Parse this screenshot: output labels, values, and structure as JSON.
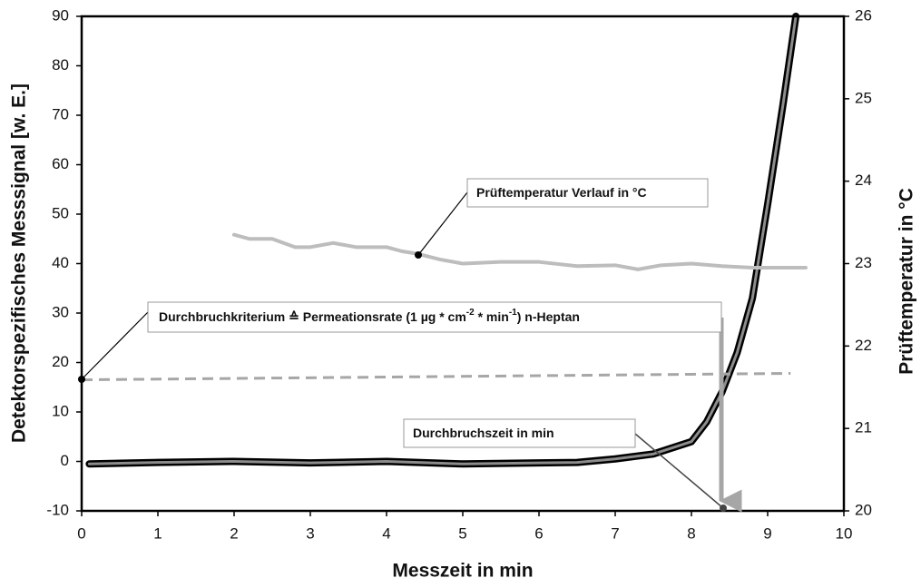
{
  "chart_data": {
    "type": "line",
    "xlabel": "Messzeit  in min",
    "ylabel": "Detektorspezifisches  Messsignal [w. E.]",
    "y2label": "Prüftemperatur in °C",
    "xlim": [
      0,
      10
    ],
    "xticks": [
      0,
      1,
      2,
      3,
      4,
      5,
      6,
      7,
      8,
      9,
      10
    ],
    "ylim": [
      -10,
      90
    ],
    "yticks": [
      -10,
      0,
      10,
      20,
      30,
      40,
      50,
      60,
      70,
      80,
      90
    ],
    "y2lim": [
      20,
      26
    ],
    "y2ticks": [
      20,
      21,
      22,
      23,
      24,
      25,
      26
    ],
    "series": [
      {
        "color": "#8c8c8c",
        "style": "signal",
        "x": [
          0.1,
          1,
          2,
          3,
          4,
          5,
          6,
          6.5,
          7,
          7.5,
          8,
          8.2,
          8.4,
          8.6,
          8.8,
          9,
          9.2,
          9.37
        ],
        "values": [
          -0.5,
          -0.2,
          0,
          -0.3,
          0,
          -0.5,
          -0.3,
          -0.2,
          0.5,
          1.5,
          4,
          8,
          14,
          22,
          33,
          52,
          72,
          90
        ]
      },
      {
        "color": "#bdbdbd",
        "style": "solid",
        "axis": "y2",
        "x": [
          2,
          2.2,
          2.5,
          2.8,
          3,
          3.3,
          3.6,
          4,
          4.2,
          4.4,
          4.7,
          5,
          5.5,
          6,
          6.5,
          7,
          7.3,
          7.6,
          8,
          8.4,
          8.8,
          9.2,
          9.5
        ],
        "values": [
          23.35,
          23.3,
          23.3,
          23.2,
          23.2,
          23.25,
          23.2,
          23.2,
          23.15,
          23.12,
          23.05,
          23.0,
          23.02,
          23.02,
          22.97,
          22.98,
          22.93,
          22.98,
          23.0,
          22.97,
          22.95,
          22.95,
          22.95
        ]
      },
      {
        "color": "#a6a6a6",
        "style": "dashed",
        "x": [
          0,
          9.3
        ],
        "values": [
          16.5,
          17.8
        ]
      }
    ],
    "annotations": [
      {
        "text": [
          "Prüftemperatur Verlauf in °C"
        ]
      },
      {
        "text": [
          "Durchbruchkriterium  ≙  Permeationsrate (1 µg * cm",
          "-2",
          " * min",
          "-1",
          ") n-Heptan"
        ]
      },
      {
        "text": [
          "Durchbruchszeit in min"
        ]
      }
    ]
  }
}
